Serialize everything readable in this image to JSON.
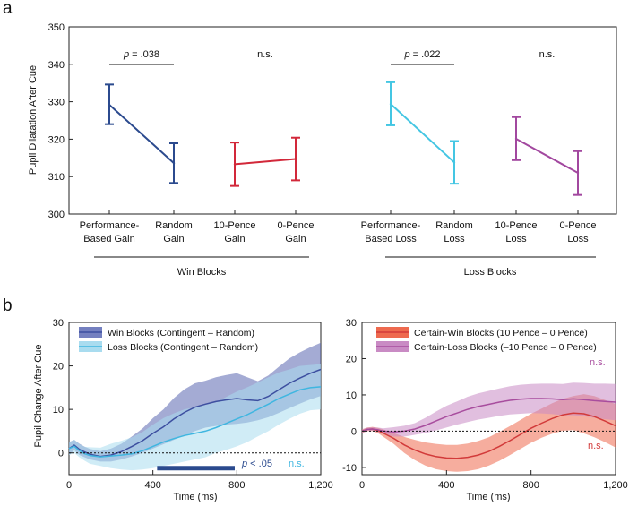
{
  "panels": {
    "a": "a",
    "b": "b"
  },
  "chart_data": [
    {
      "type": "errorbar-line",
      "title": "",
      "ylabel": "Pupil Dilatation After Cue",
      "ylim": [
        300,
        350
      ],
      "yticks": [
        300,
        310,
        320,
        330,
        340,
        350
      ],
      "categories": [
        {
          "line1": "Performance-",
          "line2": "Based Gain"
        },
        {
          "line1": "Random",
          "line2": "Gain"
        },
        {
          "line1": "10-Pence",
          "line2": "Gain"
        },
        {
          "line1": "0-Pence",
          "line2": "Gain"
        },
        {
          "line1": "Performance-",
          "line2": "Based Loss"
        },
        {
          "line1": "Random",
          "line2": "Loss"
        },
        {
          "line1": "10-Pence",
          "line2": "Loss"
        },
        {
          "line1": "0-Pence",
          "line2": "Loss"
        }
      ],
      "pairs": [
        {
          "name": "Performance-Based vs Random Gain",
          "color": "#2b4a8e",
          "values": [
            329.2,
            313.6
          ],
          "errors": [
            [
              324,
              334.6
            ],
            [
              308.3,
              318.9
            ]
          ],
          "annotation": {
            "p": "p",
            "rest": " = .038"
          }
        },
        {
          "name": "10-Pence vs 0-Pence Gain",
          "color": "#d2283a",
          "values": [
            313.3,
            314.7
          ],
          "errors": [
            [
              307.5,
              319.1
            ],
            [
              309,
              320.4
            ]
          ],
          "annotation": {
            "text": "n.s."
          }
        },
        {
          "name": "Performance-Based vs Random Loss",
          "color": "#44c6e3",
          "values": [
            329.4,
            313.8
          ],
          "errors": [
            [
              323.7,
              335.2
            ],
            [
              308.1,
              319.5
            ]
          ],
          "annotation": {
            "p": "p",
            "rest": " = .022"
          }
        },
        {
          "name": "10-Pence vs 0-Pence Loss",
          "color": "#a2489f",
          "values": [
            320.1,
            311
          ],
          "errors": [
            [
              314.4,
              325.9
            ],
            [
              305.1,
              316.8
            ]
          ],
          "annotation": {
            "text": "n.s."
          }
        }
      ],
      "groups": [
        "Win Blocks",
        "Loss Blocks"
      ]
    },
    {
      "type": "line",
      "xlabel": "Time (ms)",
      "ylabel": "Pupil Change After Cue",
      "xlim": [
        0,
        1200
      ],
      "ylim": [
        -5,
        30
      ],
      "xticks": [
        0,
        400,
        800,
        1200
      ],
      "xtick_labels": [
        "0",
        "400",
        "800",
        "1,200"
      ],
      "yticks": [
        0,
        10,
        20,
        30
      ],
      "legend": [
        "Win Blocks (Contingent – Random)",
        "Loss Blocks (Contingent – Random)"
      ],
      "x": [
        0,
        25,
        50,
        75,
        100,
        150,
        200,
        250,
        300,
        350,
        400,
        450,
        500,
        550,
        600,
        650,
        700,
        750,
        800,
        850,
        900,
        950,
        1000,
        1050,
        1100,
        1150,
        1200
      ],
      "series": [
        {
          "name": "Win Blocks (Contingent – Random)",
          "color": "#3d4fa0",
          "fill": "#5a66b0",
          "values": [
            1,
            1.8,
            0.8,
            0.2,
            -0.3,
            -0.8,
            -0.5,
            0.3,
            1.5,
            2.8,
            4.5,
            6,
            7.8,
            9.3,
            10.5,
            11.2,
            11.8,
            12.2,
            12.5,
            12.2,
            12,
            13,
            14.5,
            16,
            17.2,
            18.3,
            19.2
          ],
          "lower": [
            -0.5,
            0.6,
            -0.5,
            -1,
            -1.5,
            -2,
            -2,
            -1.5,
            -0.8,
            0,
            1,
            2,
            3,
            4,
            5,
            5.8,
            6.2,
            6.5,
            6.7,
            7,
            7.5,
            8.2,
            9.2,
            10.3,
            11.3,
            12.3,
            13.1
          ],
          "upper": [
            2.5,
            3,
            2.1,
            1.4,
            0.9,
            0.4,
            1,
            2.1,
            3.8,
            5.6,
            8,
            10,
            12.6,
            14.6,
            16,
            16.6,
            17.4,
            17.9,
            18.3,
            17.4,
            16.5,
            17.8,
            19.8,
            21.7,
            23.1,
            24.3,
            25.3
          ]
        },
        {
          "name": "Loss Blocks (Contingent – Random)",
          "color": "#3fb6e0",
          "fill": "#a9dcef",
          "values": [
            1,
            1.5,
            0.5,
            -0.2,
            -0.6,
            -0.9,
            -0.7,
            -0.5,
            -0.2,
            0.5,
            1.5,
            2.5,
            3.3,
            4,
            4.5,
            5,
            5.8,
            6.8,
            7.8,
            8.8,
            10,
            11.2,
            12.5,
            13.5,
            14.5,
            15,
            15.2
          ],
          "lower": [
            -0.5,
            0,
            -1,
            -1.8,
            -2.5,
            -3,
            -3.5,
            -3.8,
            -4,
            -3.8,
            -3.5,
            -3,
            -2.5,
            -2,
            -1.5,
            -1,
            0,
            0.7,
            1.5,
            2.5,
            3.8,
            5,
            6.5,
            7.8,
            9,
            9.8,
            10
          ],
          "upper": [
            2.5,
            3,
            2,
            1.4,
            1.3,
            1.2,
            2.1,
            2.8,
            3.6,
            4.8,
            6.5,
            8,
            9.1,
            10,
            10.5,
            11,
            11.6,
            12.9,
            14.1,
            15.1,
            16.2,
            17.4,
            18.5,
            19.2,
            20,
            20.2,
            20.4
          ]
        }
      ],
      "significance_bar": {
        "from": 420,
        "to": 790,
        "y": -3.5,
        "color": "#2b4a8e"
      },
      "annotations": [
        {
          "p": "p",
          "rest": " < .05"
        },
        {
          "text": "n.s."
        }
      ]
    },
    {
      "type": "line",
      "xlabel": "Time (ms)",
      "ylabel": "",
      "xlim": [
        0,
        1200
      ],
      "ylim": [
        -12,
        30
      ],
      "xticks": [
        0,
        400,
        800,
        1200
      ],
      "xtick_labels": [
        "0",
        "400",
        "800",
        "1,200"
      ],
      "yticks": [
        -10,
        0,
        10,
        20,
        30
      ],
      "legend": [
        "Certain-Win Blocks (10 Pence – 0 Pence)",
        "Certain-Loss Blocks (–10 Pence – 0 Pence)"
      ],
      "x": [
        0,
        25,
        50,
        75,
        100,
        150,
        200,
        250,
        300,
        350,
        400,
        450,
        500,
        550,
        600,
        650,
        700,
        750,
        800,
        850,
        900,
        950,
        1000,
        1050,
        1100,
        1150,
        1200
      ],
      "series": [
        {
          "name": "Certain-Win Blocks (10 Pence – 0 Pence)",
          "color": "#d23a3a",
          "fill": "#ee6a4f",
          "values": [
            0,
            0.5,
            0.6,
            0.2,
            -0.5,
            -2,
            -3.8,
            -5.2,
            -6.3,
            -7,
            -7.4,
            -7.5,
            -7.2,
            -6.6,
            -5.6,
            -4.2,
            -2.6,
            -0.9,
            0.8,
            2.2,
            3.5,
            4.5,
            5,
            4.8,
            4,
            2.8,
            1.5
          ],
          "lower": [
            -0.5,
            0,
            0,
            -0.5,
            -1.5,
            -3.5,
            -6,
            -8,
            -9.5,
            -10.5,
            -11,
            -11.2,
            -11,
            -10.5,
            -9.5,
            -8.2,
            -6.6,
            -4.9,
            -3.2,
            -1.8,
            -0.7,
            0.1,
            0.3,
            -0.6,
            -1.7,
            -3,
            -4.5
          ],
          "upper": [
            0.5,
            1,
            1.2,
            0.9,
            0.5,
            -0.5,
            -1.6,
            -2.4,
            -3.1,
            -3.5,
            -3.8,
            -3.8,
            -3.4,
            -2.7,
            -1.7,
            -0.2,
            1.4,
            3.1,
            4.8,
            6.2,
            7.7,
            8.9,
            9.7,
            10.2,
            9.7,
            8.6,
            7.5
          ]
        },
        {
          "name": "Certain-Loss Blocks (–10 Pence – 0 Pence)",
          "color": "#a84d9e",
          "fill": "#c98bc4",
          "values": [
            0,
            0.5,
            0.6,
            0.4,
            0,
            -0.2,
            0,
            0.6,
            1.6,
            2.8,
            4,
            5,
            6,
            6.8,
            7.4,
            8,
            8.5,
            8.8,
            9,
            9,
            8.9,
            8.7,
            8.9,
            8.7,
            8.4,
            8.2,
            8
          ],
          "lower": [
            -0.5,
            0,
            0.1,
            -0.2,
            -0.8,
            -1.5,
            -1.5,
            -1,
            -0.5,
            0.2,
            1,
            1.8,
            2.5,
            3.2,
            3.7,
            4.2,
            4.6,
            4.8,
            5,
            4.9,
            4.7,
            4.4,
            4.4,
            4.1,
            3.7,
            3.3,
            3
          ],
          "upper": [
            0.5,
            1,
            1.1,
            1,
            0.8,
            1.1,
            1.5,
            2.2,
            3.7,
            5.4,
            7,
            8.2,
            9.5,
            10.4,
            11.1,
            11.8,
            12.4,
            12.8,
            13,
            13.1,
            13.1,
            13,
            13.4,
            13.3,
            13.1,
            13.1,
            13
          ]
        }
      ],
      "annotations": [
        {
          "text": "n.s."
        },
        {
          "text": "n.s."
        }
      ]
    }
  ]
}
